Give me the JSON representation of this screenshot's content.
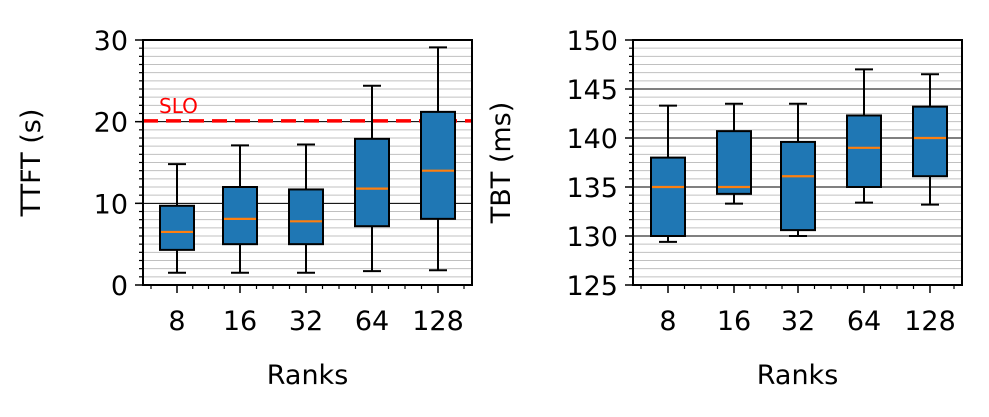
{
  "chart_data": [
    {
      "type": "box",
      "xlabel": "Ranks",
      "ylabel": "TTFT (s)",
      "categories": [
        "8",
        "16",
        "32",
        "64",
        "128"
      ],
      "ylim": [
        0,
        30
      ],
      "yticks": [
        "0",
        "10",
        "20",
        "30"
      ],
      "grid": "horizontal major and minor",
      "box_color": "#1f77b4",
      "median_color": "#ff7f0e",
      "boxes": [
        {
          "whislo": 1.5,
          "q1": 4.3,
          "med": 6.5,
          "q3": 9.7,
          "whishi": 14.8
        },
        {
          "whislo": 1.5,
          "q1": 5.0,
          "med": 8.1,
          "q3": 12.0,
          "whishi": 17.1
        },
        {
          "whislo": 1.5,
          "q1": 5.0,
          "med": 7.8,
          "q3": 11.7,
          "whishi": 17.2
        },
        {
          "whislo": 1.7,
          "q1": 7.2,
          "med": 11.8,
          "q3": 17.9,
          "whishi": 24.4
        },
        {
          "whislo": 1.8,
          "q1": 8.1,
          "med": 14.0,
          "q3": 21.2,
          "whishi": 29.1
        }
      ],
      "slo": {
        "label": "SLO",
        "value": 20.1,
        "color": "#ff0000"
      }
    },
    {
      "type": "box",
      "xlabel": "Ranks",
      "ylabel": "TBT (ms)",
      "categories": [
        "8",
        "16",
        "32",
        "64",
        "128"
      ],
      "ylim": [
        125,
        150
      ],
      "yticks": [
        "125",
        "130",
        "135",
        "140",
        "145",
        "150"
      ],
      "grid": "horizontal major and minor",
      "box_color": "#1f77b4",
      "median_color": "#ff7f0e",
      "boxes": [
        {
          "whislo": 129.4,
          "q1": 130.0,
          "med": 135.0,
          "q3": 138.0,
          "whishi": 143.3
        },
        {
          "whislo": 133.3,
          "q1": 134.3,
          "med": 135.0,
          "q3": 140.7,
          "whishi": 143.5
        },
        {
          "whislo": 130.0,
          "q1": 130.6,
          "med": 136.1,
          "q3": 139.6,
          "whishi": 143.5
        },
        {
          "whislo": 133.4,
          "q1": 135.0,
          "med": 139.0,
          "q3": 142.3,
          "whishi": 147.0
        },
        {
          "whislo": 133.2,
          "q1": 136.1,
          "med": 140.0,
          "q3": 143.2,
          "whishi": 146.5
        }
      ]
    }
  ]
}
